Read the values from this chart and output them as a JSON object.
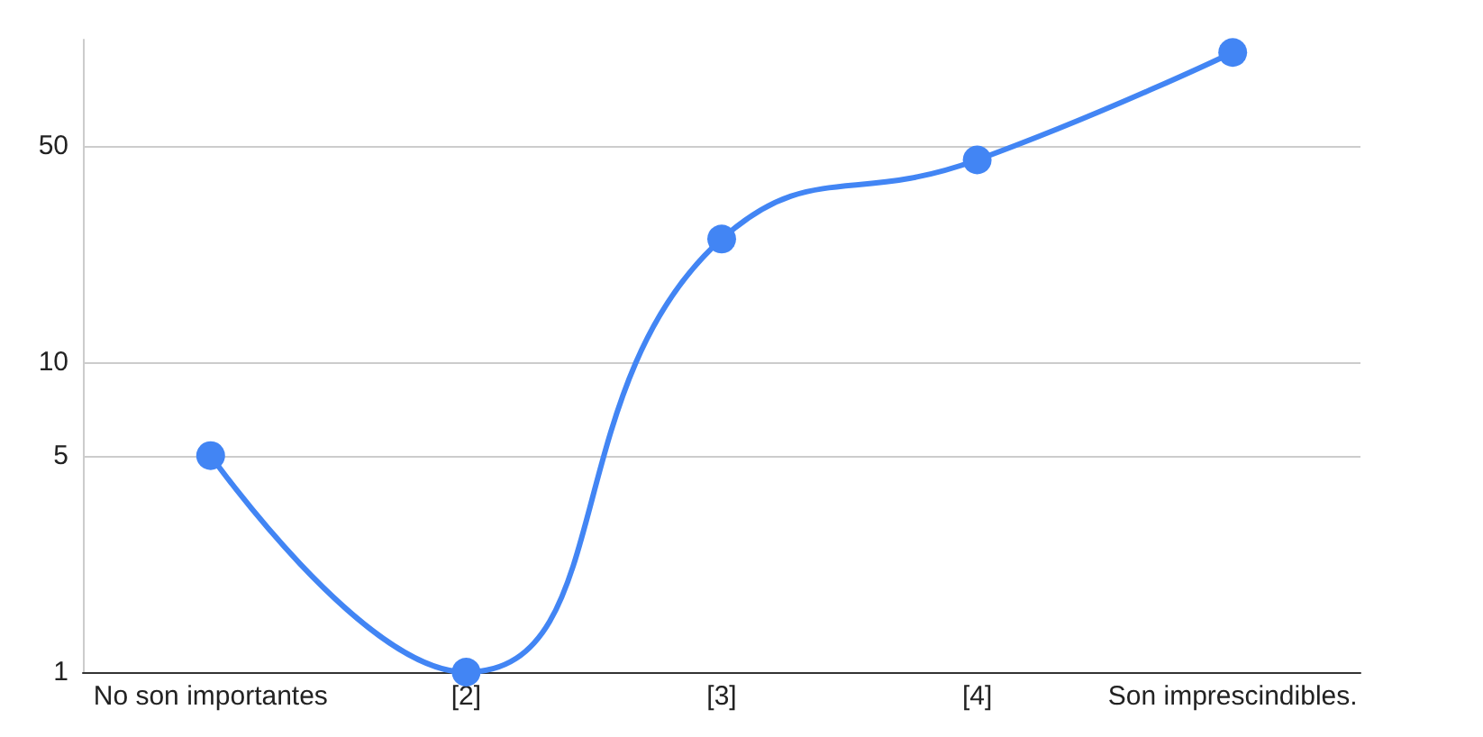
{
  "chart_data": {
    "type": "line",
    "categories": [
      "No son importantes",
      "[2]",
      "[3]",
      "[4]",
      "Son imprescindibles."
    ],
    "series": [
      {
        "color": "#4285f4",
        "values": [
          5,
          1,
          25,
          45,
          100
        ]
      }
    ],
    "log": true,
    "ylim": [
      1,
      110
    ],
    "yticks": [
      1,
      5,
      10,
      50
    ],
    "grid": "y",
    "marker": "circle",
    "line_style": "solid"
  }
}
